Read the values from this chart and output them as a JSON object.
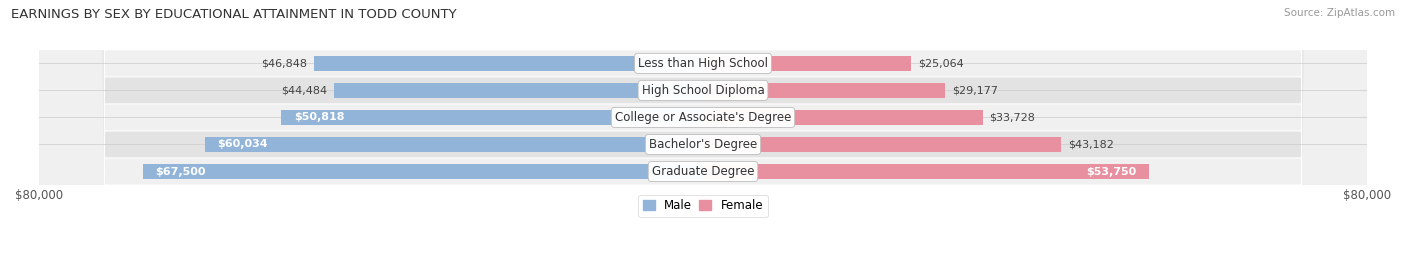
{
  "title": "EARNINGS BY SEX BY EDUCATIONAL ATTAINMENT IN TODD COUNTY",
  "source": "Source: ZipAtlas.com",
  "categories": [
    "Less than High School",
    "High School Diploma",
    "College or Associate's Degree",
    "Bachelor's Degree",
    "Graduate Degree"
  ],
  "male_values": [
    46848,
    44484,
    50818,
    60034,
    67500
  ],
  "female_values": [
    25064,
    29177,
    33728,
    43182,
    53750
  ],
  "male_color": "#92b4d8",
  "female_color": "#e88fa0",
  "row_bg_color_light": "#f0f0f0",
  "row_bg_color_dark": "#e3e3e3",
  "max_value": 80000,
  "axis_label": "$80,000",
  "bar_height": 0.58,
  "background_color": "#ffffff",
  "title_fontsize": 9.5,
  "tick_fontsize": 8.5,
  "value_fontsize": 8.0,
  "category_fontsize": 8.5,
  "inside_label_threshold": 50000
}
